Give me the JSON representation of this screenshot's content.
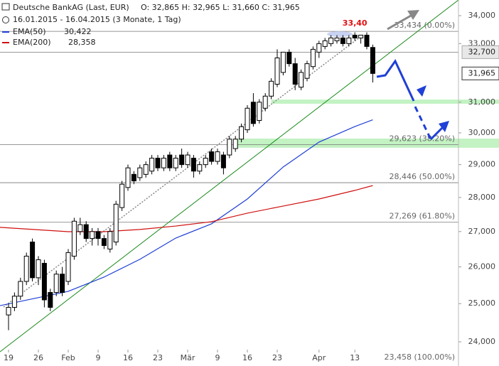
{
  "header": {
    "instrument": "Deutsche BankAG (Last, EUR)",
    "quote": "O: 32,865  H: 32,965  L: 31,660  C: 31,965",
    "period": "16.01.2015 - 16.04.2015 (3 Monate, 1 Tag)"
  },
  "chart_data": {
    "type": "candlestick",
    "log_scale": true,
    "ylim": [
      23837,
      34573
    ],
    "yticks": [
      {
        "value": 24000,
        "label": "24,000"
      },
      {
        "value": 25000,
        "label": "25,000"
      },
      {
        "value": 26000,
        "label": "26,000"
      },
      {
        "value": 27000,
        "label": "27,000"
      },
      {
        "value": 28000,
        "label": "28,000"
      },
      {
        "value": 29000,
        "label": "29,000"
      },
      {
        "value": 30000,
        "label": "30,000"
      },
      {
        "value": 31000,
        "label": "31,000"
      },
      {
        "value": 33000,
        "label": "33,000"
      },
      {
        "value": 34000,
        "label": "34,000"
      }
    ],
    "xticks": [
      {
        "value": 0,
        "label": "19"
      },
      {
        "value": 5,
        "label": "26"
      },
      {
        "value": 10,
        "label": "Feb"
      },
      {
        "value": 15,
        "label": "9"
      },
      {
        "value": 20,
        "label": "16"
      },
      {
        "value": 25,
        "label": "23"
      },
      {
        "value": 30,
        "label": "Mär"
      },
      {
        "value": 35,
        "label": "9"
      },
      {
        "value": 40,
        "label": "16"
      },
      {
        "value": 45,
        "label": "23"
      },
      {
        "value": 52,
        "label": "Apr"
      },
      {
        "value": 58,
        "label": "13"
      }
    ],
    "open": [
      24700,
      24900,
      25200,
      25600,
      26700,
      25700,
      26100,
      25300,
      25300,
      25800,
      25600,
      26300,
      27000,
      27200,
      26800,
      27000,
      26800,
      26500,
      26700,
      27700,
      28300,
      28700,
      28600,
      28700,
      28800,
      29200,
      28900,
      29300,
      28900,
      29300,
      29000,
      29200,
      28800,
      29000,
      29400,
      29100,
      29300,
      29300,
      29500,
      29800,
      30100,
      31000,
      30400,
      30800,
      31200,
      31600,
      32000,
      32700,
      32300,
      31500,
      31800,
      32200,
      32700,
      32900,
      33000,
      33100,
      33200,
      33000,
      33300,
      33200,
      33300,
      32865
    ],
    "high": [
      25000,
      25300,
      25700,
      26400,
      26800,
      26300,
      26200,
      25400,
      25900,
      26000,
      26500,
      27400,
      27400,
      27300,
      27100,
      27100,
      26900,
      27100,
      27900,
      28500,
      29000,
      28800,
      29000,
      29100,
      29300,
      29300,
      29300,
      29400,
      29300,
      29500,
      29400,
      29300,
      29100,
      29300,
      29500,
      29500,
      29400,
      29900,
      29900,
      30300,
      30900,
      31300,
      31100,
      31300,
      31800,
      32800,
      32700,
      32800,
      32500,
      32100,
      32400,
      32900,
      33100,
      33200,
      33300,
      33300,
      33300,
      33300,
      33400,
      33300,
      33400,
      32965
    ],
    "low": [
      24300,
      24800,
      25100,
      25500,
      25600,
      25500,
      24900,
      24800,
      25200,
      25200,
      25500,
      26200,
      26900,
      26700,
      26600,
      26600,
      26500,
      26400,
      26600,
      27600,
      28200,
      28400,
      28500,
      28600,
      28700,
      28800,
      28800,
      28800,
      28800,
      28900,
      28900,
      28600,
      28700,
      28900,
      29000,
      29000,
      28700,
      29200,
      29400,
      29700,
      30000,
      30200,
      30300,
      30700,
      31100,
      31500,
      31900,
      32200,
      31400,
      31400,
      31700,
      32100,
      32500,
      32800,
      32900,
      33000,
      32900,
      32900,
      33100,
      33000,
      32800,
      31660
    ],
    "close": [
      24900,
      25200,
      25600,
      26300,
      25700,
      26200,
      25100,
      24900,
      25800,
      25300,
      26400,
      27300,
      27200,
      26800,
      27000,
      26800,
      26600,
      27000,
      27800,
      28400,
      28900,
      28500,
      28900,
      29000,
      29200,
      28900,
      29200,
      28900,
      29200,
      29000,
      29300,
      28800,
      29000,
      29200,
      29100,
      29400,
      28900,
      29800,
      29800,
      30200,
      30800,
      30300,
      31000,
      31200,
      31700,
      32500,
      32700,
      32300,
      31600,
      32000,
      32300,
      32800,
      33000,
      33100,
      33200,
      33200,
      33000,
      33200,
      33200,
      33300,
      32900,
      31965
    ],
    "series": [
      {
        "name": "EMA(50)",
        "legend_value": "30,422",
        "color": "#1f3fd6",
        "x": [
          0,
          10,
          16,
          22,
          28,
          34,
          40,
          46,
          52,
          58,
          61
        ],
        "values": [
          24946,
          25330,
          25719,
          26211,
          26812,
          27224,
          27955,
          28927,
          29706,
          30203,
          30422
        ]
      },
      {
        "name": "EMA(200)",
        "legend_value": "28,358",
        "color": "#d01010",
        "x": [
          0,
          10,
          16,
          22,
          28,
          34,
          40,
          46,
          52,
          58,
          61
        ],
        "values": [
          27122,
          26996,
          26996,
          27060,
          27159,
          27285,
          27536,
          27745,
          27955,
          28213,
          28358
        ]
      }
    ],
    "fib_levels": [
      {
        "value": 33434,
        "label": "33,434 (0.00%)"
      },
      {
        "value": 29623,
        "label": "29,623 (38.20%)"
      },
      {
        "value": 28446,
        "label": "28,446 (50.00%)"
      },
      {
        "value": 27269,
        "label": "27,269 (61.80%)"
      },
      {
        "value": 23458,
        "label": "23,458 (100.00%)"
      }
    ],
    "price_labels": [
      {
        "value": 32700,
        "label": "32,700"
      },
      {
        "value": 31965,
        "label": "31,965"
      }
    ],
    "highlight_zones": [
      {
        "from": 30948,
        "to": 31086,
        "start": 44
      },
      {
        "from": 29526,
        "to": 29818,
        "start": 38
      }
    ],
    "annotations": [
      {
        "text": "33,40",
        "x": 58
      }
    ]
  }
}
